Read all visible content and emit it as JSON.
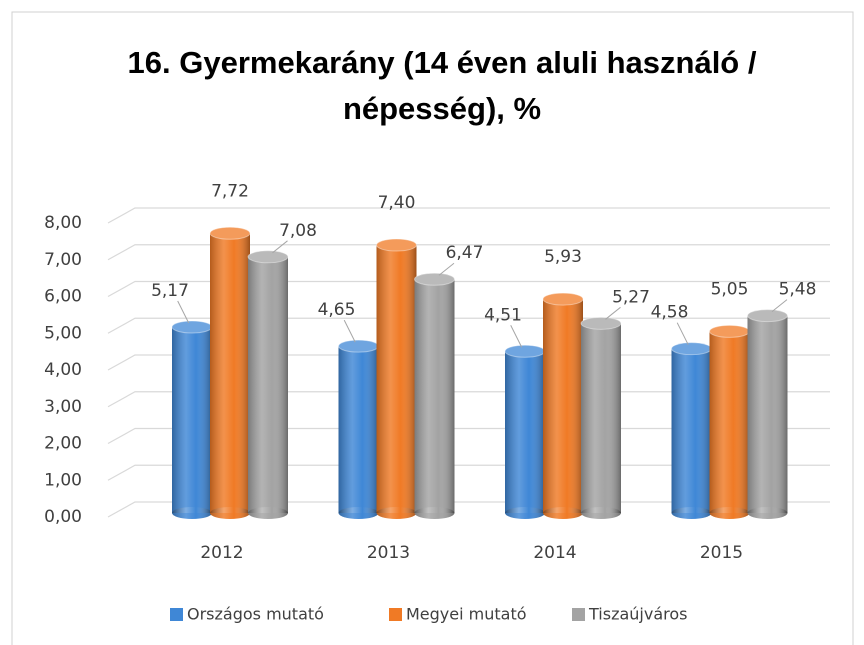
{
  "chart_data": {
    "type": "bar3d",
    "title": "16. Gyermekarány (14 éven aluli használó  / népesség), %",
    "categories": [
      "2012",
      "2013",
      "2014",
      "2015"
    ],
    "series": [
      {
        "name": "Országos mutató",
        "color": "#3f87d6",
        "values": [
          5.17,
          4.65,
          4.51,
          4.58
        ],
        "value_labels": [
          "5,17",
          "4,65",
          "4,51",
          "4,58"
        ]
      },
      {
        "name": "Megyei mutató",
        "color": "#f07a25",
        "values": [
          7.72,
          7.4,
          5.93,
          5.05
        ],
        "value_labels": [
          "7,72",
          "7,40",
          "5,93",
          "5,05"
        ]
      },
      {
        "name": "Tiszaújváros",
        "color": "#a3a3a3",
        "values": [
          7.08,
          6.47,
          5.27,
          5.48
        ],
        "value_labels": [
          "7,08",
          "6,47",
          "5,27",
          "5,48"
        ]
      }
    ],
    "ylim": [
      0,
      8
    ],
    "yticks": [
      {
        "value": 0,
        "label": "0,00"
      },
      {
        "value": 1,
        "label": "1,00"
      },
      {
        "value": 2,
        "label": "2,00"
      },
      {
        "value": 3,
        "label": "3,00"
      },
      {
        "value": 4,
        "label": "4,00"
      },
      {
        "value": 5,
        "label": "5,00"
      },
      {
        "value": 6,
        "label": "6,00"
      },
      {
        "value": 7,
        "label": "7,00"
      },
      {
        "value": 8,
        "label": "8,00"
      }
    ],
    "grid": true,
    "legend": "bottom"
  }
}
